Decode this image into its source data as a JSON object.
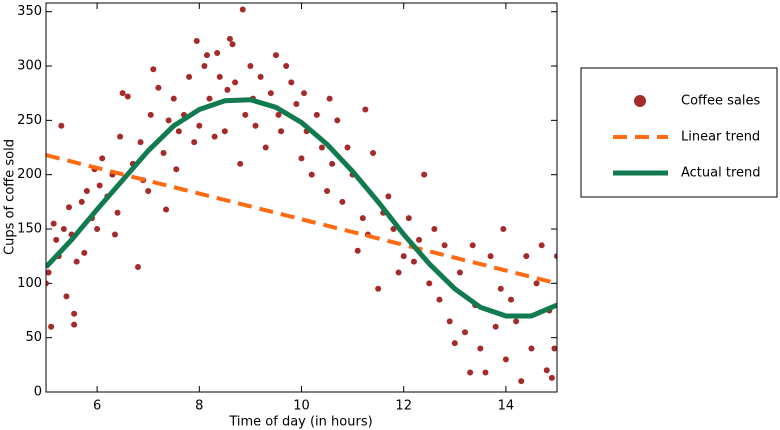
{
  "chart_data": {
    "type": "scatter",
    "xlabel": "Time of day (in hours)",
    "ylabel": "Cups of coffe sold",
    "xlim": [
      5,
      15
    ],
    "ylim": [
      0,
      358
    ],
    "xticks": [
      6,
      8,
      10,
      12,
      14
    ],
    "yticks": [
      0,
      50,
      100,
      150,
      200,
      250,
      300,
      350
    ],
    "legend": "outside-right",
    "series": [
      {
        "name": "Coffee sales",
        "type": "scatter",
        "color": "#a52a2a",
        "x": [
          5.0,
          5.05,
          5.1,
          5.15,
          5.2,
          5.25,
          5.3,
          5.35,
          5.4,
          5.45,
          5.5,
          5.55,
          5.55,
          5.6,
          5.7,
          5.75,
          5.8,
          5.9,
          5.95,
          6.0,
          6.05,
          6.1,
          6.2,
          6.3,
          6.35,
          6.4,
          6.45,
          6.5,
          6.6,
          6.7,
          6.8,
          6.85,
          6.9,
          7.0,
          7.05,
          7.1,
          7.2,
          7.3,
          7.35,
          7.4,
          7.5,
          7.55,
          7.6,
          7.7,
          7.8,
          7.9,
          7.95,
          8.0,
          8.1,
          8.15,
          8.2,
          8.3,
          8.35,
          8.4,
          8.5,
          8.55,
          8.6,
          8.65,
          8.7,
          8.8,
          8.85,
          8.9,
          9.0,
          9.05,
          9.1,
          9.2,
          9.3,
          9.4,
          9.5,
          9.55,
          9.6,
          9.7,
          9.8,
          9.9,
          10.0,
          10.05,
          10.1,
          10.2,
          10.3,
          10.4,
          10.5,
          10.55,
          10.6,
          10.7,
          10.8,
          10.9,
          11.0,
          11.1,
          11.2,
          11.25,
          11.3,
          11.4,
          11.5,
          11.6,
          11.7,
          11.8,
          11.9,
          12.0,
          12.1,
          12.2,
          12.3,
          12.4,
          12.5,
          12.6,
          12.7,
          12.8,
          12.9,
          13.0,
          13.1,
          13.2,
          13.3,
          13.35,
          13.4,
          13.5,
          13.6,
          13.7,
          13.8,
          13.9,
          13.95,
          14.0,
          14.1,
          14.2,
          14.3,
          14.4,
          14.5,
          14.6,
          14.7,
          14.8,
          14.85,
          14.9,
          14.95,
          15.0
        ],
        "values": [
          100,
          110,
          60,
          155,
          140,
          125,
          245,
          150,
          88,
          170,
          145,
          62,
          72,
          120,
          175,
          128,
          185,
          160,
          205,
          150,
          190,
          215,
          180,
          200,
          145,
          165,
          235,
          275,
          272,
          210,
          115,
          230,
          195,
          185,
          255,
          297,
          280,
          220,
          168,
          250,
          270,
          205,
          240,
          255,
          290,
          230,
          323,
          245,
          300,
          310,
          270,
          235,
          312,
          290,
          240,
          278,
          325,
          320,
          285,
          210,
          352,
          255,
          300,
          270,
          245,
          290,
          225,
          275,
          310,
          255,
          240,
          300,
          285,
          265,
          215,
          275,
          240,
          200,
          255,
          225,
          185,
          270,
          210,
          250,
          175,
          225,
          200,
          130,
          160,
          260,
          145,
          220,
          95,
          165,
          180,
          150,
          110,
          125,
          160,
          120,
          140,
          200,
          100,
          150,
          85,
          135,
          65,
          45,
          110,
          55,
          18,
          135,
          80,
          40,
          18,
          125,
          60,
          95,
          150,
          30,
          85,
          65,
          10,
          125,
          40,
          100,
          135,
          20,
          75,
          13,
          40,
          125
        ]
      },
      {
        "name": "Linear trend",
        "type": "line",
        "style": "dashed",
        "color": "#ff6a13",
        "x": [
          5,
          15
        ],
        "values": [
          218,
          100
        ]
      },
      {
        "name": "Actual trend",
        "type": "line",
        "style": "solid",
        "color": "#117a4f",
        "x": [
          5,
          5.5,
          6,
          6.5,
          7,
          7.5,
          8,
          8.5,
          9,
          9.5,
          10,
          10.5,
          11,
          11.5,
          12,
          12.5,
          13,
          13.5,
          14,
          14.5,
          15
        ],
        "values": [
          115,
          140,
          168,
          195,
          222,
          245,
          260,
          268,
          269,
          262,
          248,
          228,
          203,
          175,
          145,
          118,
          95,
          78,
          70,
          70,
          80
        ]
      }
    ]
  }
}
